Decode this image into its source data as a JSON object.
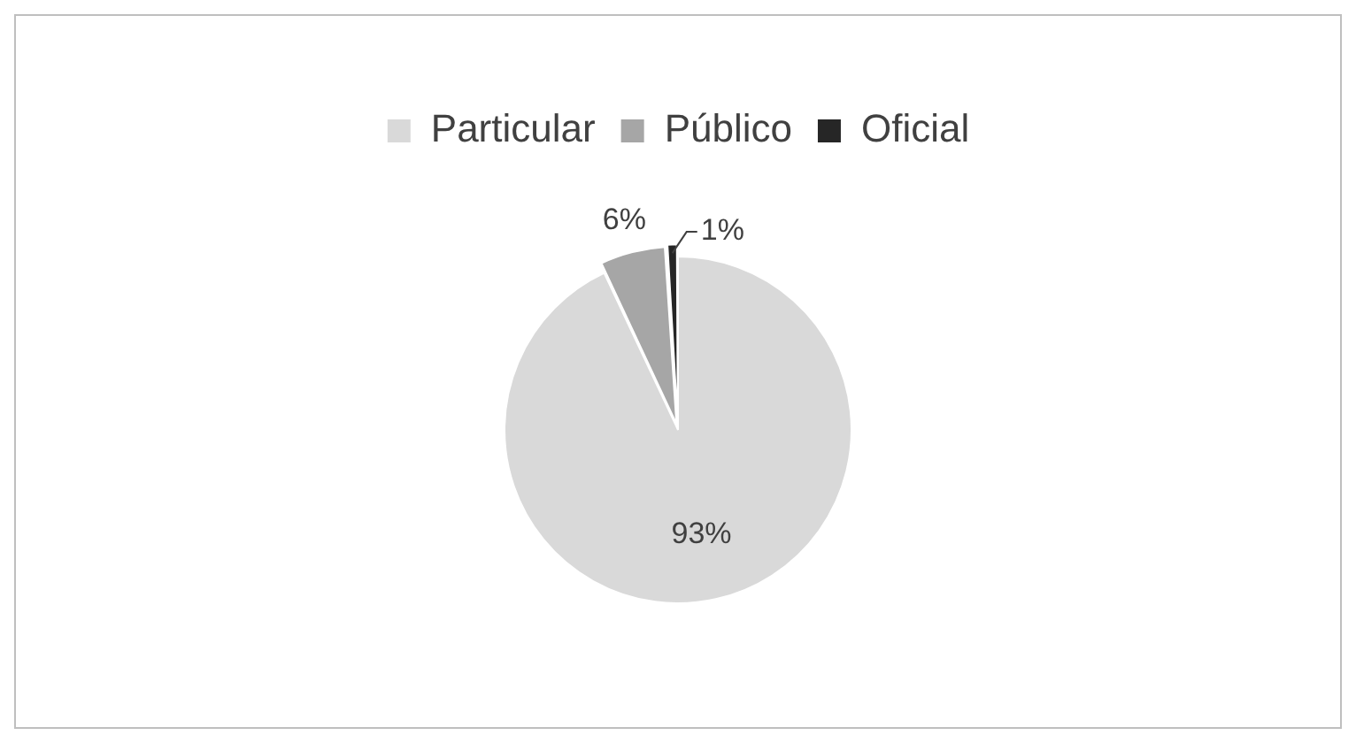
{
  "chart_data": {
    "type": "pie",
    "categories": [
      "Particular",
      "Público",
      "Oficial"
    ],
    "values": [
      93,
      6,
      1
    ],
    "colors": [
      "#d9d9d9",
      "#a6a6a6",
      "#262626"
    ],
    "value_labels": [
      "93%",
      "6%",
      "1%"
    ],
    "legend": "top"
  }
}
